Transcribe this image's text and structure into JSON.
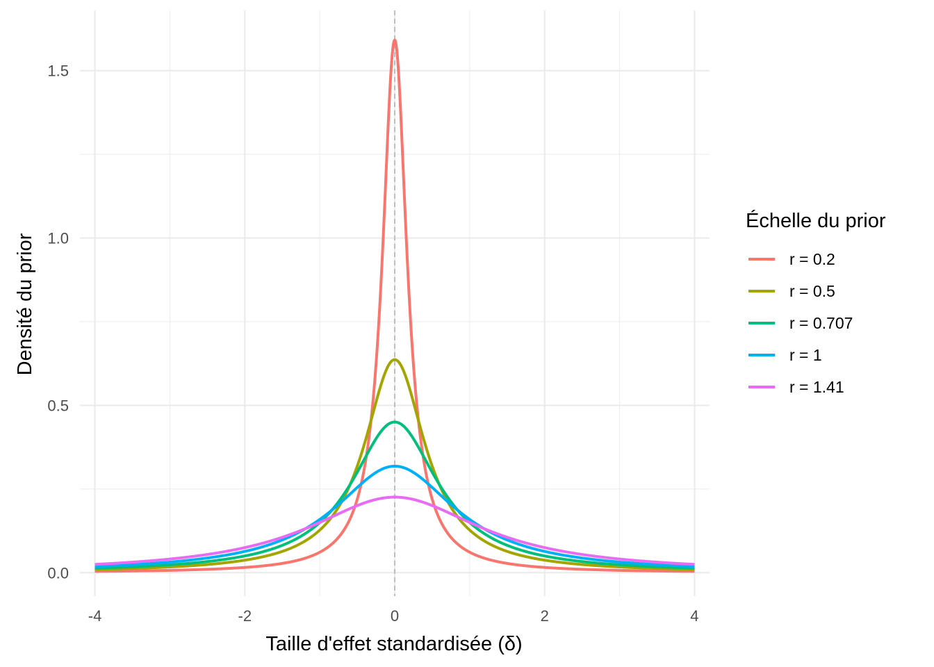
{
  "chart_data": {
    "type": "line",
    "title": "",
    "xlabel": "Taille d'effet standardisée (δ)",
    "ylabel": "Densité du prior",
    "xlim": [
      -4.2,
      4.2
    ],
    "ylim": [
      -0.07,
      1.68
    ],
    "x_ticks": [
      {
        "value": -4,
        "label": "-4"
      },
      {
        "value": -2,
        "label": "-2"
      },
      {
        "value": 0,
        "label": "0"
      },
      {
        "value": 2,
        "label": "2"
      },
      {
        "value": 4,
        "label": "4"
      }
    ],
    "y_ticks": [
      {
        "value": 0,
        "label": "0.0"
      },
      {
        "value": 0.5,
        "label": "0.5"
      },
      {
        "value": 1,
        "label": "1.0"
      },
      {
        "value": 1.5,
        "label": "1.5"
      }
    ],
    "grid": true,
    "reference_line": {
      "x": 0,
      "style": "dashed",
      "color": "#b3b3b3"
    },
    "legend": {
      "title": "Échelle du prior",
      "position": "right"
    },
    "x_range": [
      -4,
      4
    ],
    "series": [
      {
        "name": "r = 0.2",
        "scale": 0.2,
        "color": "#F8766D"
      },
      {
        "name": "r = 0.5",
        "scale": 0.5,
        "color": "#A3A500"
      },
      {
        "name": "r = 0.707",
        "scale": 0.707,
        "color": "#00BF7D"
      },
      {
        "name": "r = 1",
        "scale": 1,
        "color": "#00B0F6"
      },
      {
        "name": "r = 1.41",
        "scale": 1.41,
        "color": "#E76BF3"
      }
    ]
  }
}
